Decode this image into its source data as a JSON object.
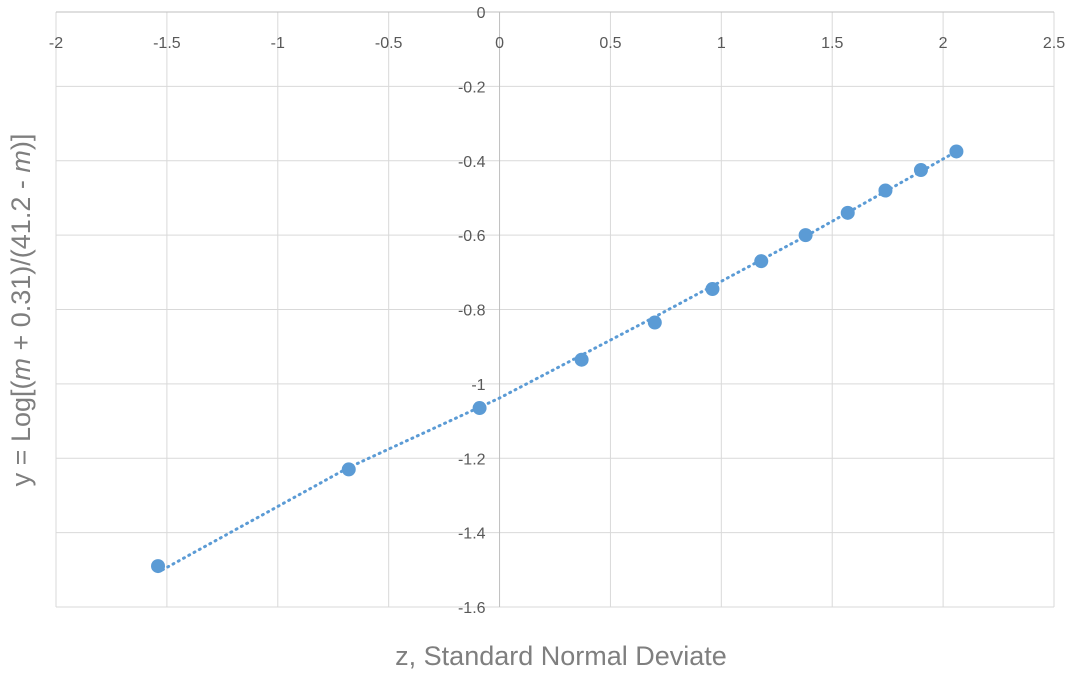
{
  "chart_data": {
    "type": "scatter",
    "title": "",
    "xlabel": "z, Standard Normal Deviate",
    "ylabel": "y = Log[(m + 0.31)/(41.2 - m)]",
    "ylabel_parts": [
      {
        "text": "y = Log[(",
        "italic": false
      },
      {
        "text": "m",
        "italic": true
      },
      {
        "text": " + 0.31)/(41.2 - ",
        "italic": false
      },
      {
        "text": "m",
        "italic": true
      },
      {
        "text": ")]",
        "italic": false
      }
    ],
    "xlim": [
      -2,
      2.5
    ],
    "ylim": [
      -1.6,
      0
    ],
    "x_ticks": [
      -2,
      -1.5,
      -1,
      -0.5,
      0,
      0.5,
      1,
      1.5,
      2,
      2.5
    ],
    "x_tick_labels": [
      "-2",
      "-1.5",
      "-1",
      "-0.5",
      "0",
      "0.5",
      "1",
      "1.5",
      "2",
      "2.5"
    ],
    "y_ticks": [
      0,
      -0.2,
      -0.4,
      -0.6,
      -0.8,
      -1,
      -1.2,
      -1.4,
      -1.6
    ],
    "y_tick_labels": [
      "0",
      "-0.2",
      "-0.4",
      "-0.6",
      "-0.8",
      "-1",
      "-1.2",
      "-1.4",
      "-1.6"
    ],
    "grid": true,
    "legend": "none",
    "x_axis_position": "top",
    "series": [
      {
        "color": "#5b9bd5",
        "points": [
          {
            "x": -1.54,
            "y": -1.49
          },
          {
            "x": -0.68,
            "y": -1.23
          },
          {
            "x": -0.09,
            "y": -1.065
          },
          {
            "x": 0.37,
            "y": -0.935
          },
          {
            "x": 0.7,
            "y": -0.835
          },
          {
            "x": 0.96,
            "y": -0.745
          },
          {
            "x": 1.18,
            "y": -0.67
          },
          {
            "x": 1.38,
            "y": -0.6
          },
          {
            "x": 1.57,
            "y": -0.54
          },
          {
            "x": 1.74,
            "y": -0.48
          },
          {
            "x": 1.9,
            "y": -0.425
          },
          {
            "x": 2.06,
            "y": -0.375
          }
        ],
        "trendline": {
          "style": "dotted",
          "color": "#5b9bd5",
          "type": "polynomial",
          "points": [
            {
              "x": -1.52,
              "y": -1.5
            },
            {
              "x": -0.68,
              "y": -1.225
            },
            {
              "x": 0.0,
              "y": -1.038
            },
            {
              "x": 0.7,
              "y": -0.82
            },
            {
              "x": 1.38,
              "y": -0.603
            },
            {
              "x": 2.06,
              "y": -0.375
            }
          ]
        }
      }
    ]
  }
}
